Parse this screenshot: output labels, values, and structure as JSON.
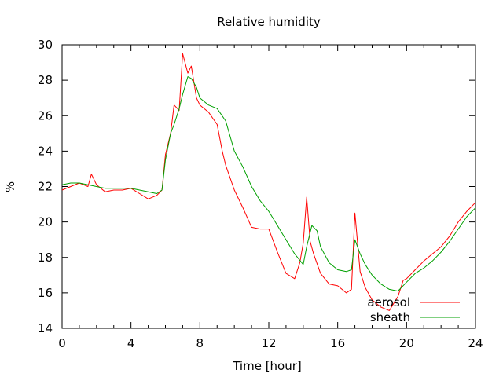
{
  "chart_data": {
    "type": "line",
    "title": "Relative humidity",
    "xlabel": "Time [hour]",
    "ylabel": "%",
    "xlim": [
      0,
      24
    ],
    "ylim": [
      14,
      30
    ],
    "xticks": [
      0,
      4,
      8,
      12,
      16,
      20,
      24
    ],
    "yticks": [
      14,
      16,
      18,
      20,
      22,
      24,
      26,
      28,
      30
    ],
    "grid": false,
    "legend_position": "bottom-right",
    "series": [
      {
        "name": "aerosol",
        "color": "#ff0000",
        "x": [
          0,
          0.5,
          1,
          1.5,
          1.7,
          2,
          2.5,
          3,
          3.5,
          4,
          4.5,
          5,
          5.5,
          5.8,
          6,
          6.3,
          6.5,
          6.8,
          7,
          7.3,
          7.5,
          7.8,
          8,
          8.5,
          9,
          9.3,
          9.5,
          10,
          10.5,
          11,
          11.5,
          12,
          12.5,
          13,
          13.5,
          13.8,
          14,
          14.2,
          14.4,
          14.6,
          15,
          15.5,
          16,
          16.5,
          16.8,
          17,
          17.3,
          17.6,
          18,
          18.5,
          19,
          19.5,
          19.8,
          20,
          20.5,
          21,
          21.5,
          22,
          22.5,
          23,
          23.5,
          24
        ],
        "y": [
          21.8,
          22.0,
          22.2,
          22.0,
          22.7,
          22.1,
          21.7,
          21.8,
          21.8,
          21.9,
          21.6,
          21.3,
          21.5,
          21.8,
          23.8,
          25.0,
          26.6,
          26.3,
          29.5,
          28.4,
          28.8,
          27.0,
          26.6,
          26.2,
          25.5,
          24.0,
          23.2,
          21.8,
          20.8,
          19.7,
          19.6,
          19.6,
          18.3,
          17.1,
          16.8,
          17.7,
          18.8,
          21.4,
          18.9,
          18.2,
          17.1,
          16.5,
          16.4,
          16.0,
          16.2,
          20.5,
          17.2,
          16.3,
          15.6,
          15.2,
          15.0,
          15.8,
          16.7,
          16.8,
          17.3,
          17.8,
          18.2,
          18.6,
          19.2,
          20.0,
          20.6,
          21.1
        ]
      },
      {
        "name": "sheath",
        "color": "#00a000",
        "x": [
          0,
          0.5,
          1,
          1.5,
          2,
          2.5,
          3,
          3.5,
          4,
          4.5,
          5,
          5.5,
          5.8,
          6,
          6.3,
          6.5,
          6.8,
          7,
          7.3,
          7.5,
          7.8,
          8,
          8.5,
          9,
          9.5,
          10,
          10.5,
          11,
          11.5,
          12,
          12.5,
          13,
          13.5,
          14,
          14.2,
          14.5,
          14.8,
          15,
          15.5,
          16,
          16.5,
          16.8,
          17,
          17.3,
          17.6,
          18,
          18.5,
          19,
          19.5,
          20,
          20.5,
          21,
          21.5,
          22,
          22.5,
          23,
          23.5,
          24
        ],
        "y": [
          22.1,
          22.2,
          22.2,
          22.1,
          22.0,
          21.9,
          21.9,
          21.9,
          21.9,
          21.8,
          21.7,
          21.6,
          21.8,
          23.5,
          25.0,
          25.5,
          26.4,
          27.2,
          28.2,
          28.1,
          27.6,
          27.0,
          26.6,
          26.4,
          25.7,
          24.0,
          23.1,
          22.0,
          21.2,
          20.6,
          19.8,
          19.0,
          18.2,
          17.6,
          18.6,
          19.8,
          19.5,
          18.6,
          17.7,
          17.3,
          17.2,
          17.3,
          19.0,
          18.2,
          17.6,
          17.0,
          16.5,
          16.2,
          16.1,
          16.6,
          17.1,
          17.4,
          17.8,
          18.3,
          18.9,
          19.6,
          20.3,
          20.8
        ]
      }
    ]
  }
}
